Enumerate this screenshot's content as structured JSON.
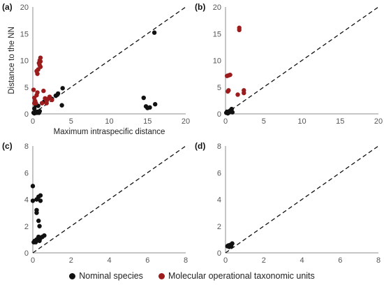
{
  "colors": {
    "nominal": "#111111",
    "motu": "#9b1c1c",
    "axis": "#8c8c8c",
    "diagonal": "#111111"
  },
  "legend": {
    "nominal_label": "Nominal species",
    "motu_label": "Molecular operational taxonomic units"
  },
  "chart_data": [
    {
      "panel": "(a)",
      "type": "scatter",
      "xlabel": "Maximum intraspecific distance",
      "ylabel": "Distance to the NN",
      "xlim": [
        0,
        20
      ],
      "ylim": [
        0,
        20
      ],
      "xticks": [
        0,
        5,
        10,
        15,
        20
      ],
      "yticks": [
        0,
        5,
        10,
        15,
        20
      ],
      "diagonal": "y = x (dashed)",
      "series": [
        {
          "name": "Nominal species",
          "color": "#111111",
          "points": [
            [
              0.1,
              0.2
            ],
            [
              0.2,
              0.1
            ],
            [
              0.3,
              0.3
            ],
            [
              0.5,
              0.2
            ],
            [
              0.6,
              0.4
            ],
            [
              0.8,
              0.2
            ],
            [
              0.9,
              0.5
            ],
            [
              0.4,
              1.6
            ],
            [
              0.2,
              1.0
            ],
            [
              0.7,
              1.5
            ],
            [
              1.5,
              2.3
            ],
            [
              2.5,
              2.8
            ],
            [
              3.0,
              3.4
            ],
            [
              3.3,
              3.8
            ],
            [
              3.9,
              4.8
            ],
            [
              3.8,
              1.6
            ],
            [
              14.5,
              3.0
            ],
            [
              14.8,
              1.4
            ],
            [
              15.0,
              1.1
            ],
            [
              15.3,
              1.2
            ],
            [
              16.0,
              1.8
            ],
            [
              15.9,
              15.2
            ]
          ]
        },
        {
          "name": "Molecular operational taxonomic units",
          "color": "#9b1c1c",
          "points": [
            [
              0.1,
              4.5
            ],
            [
              0.2,
              3.0
            ],
            [
              0.3,
              2.4
            ],
            [
              0.4,
              2.0
            ],
            [
              0.5,
              3.5
            ],
            [
              0.6,
              7.5
            ],
            [
              0.7,
              8.3
            ],
            [
              0.8,
              9.5
            ],
            [
              0.9,
              10.0
            ],
            [
              1.0,
              10.5
            ],
            [
              0.5,
              8.0
            ],
            [
              1.0,
              8.8
            ],
            [
              0.9,
              9.1
            ],
            [
              1.0,
              9.8
            ],
            [
              1.2,
              2.0
            ],
            [
              1.4,
              4.3
            ],
            [
              1.6,
              2.9
            ],
            [
              1.8,
              2.4
            ],
            [
              1.8,
              2.0
            ],
            [
              2.0,
              2.8
            ],
            [
              2.2,
              3.2
            ],
            [
              2.5,
              2.6
            ],
            [
              0.6,
              4.0
            ],
            [
              0.2,
              2.0
            ]
          ]
        }
      ]
    },
    {
      "panel": "(b)",
      "type": "scatter",
      "xlim": [
        0,
        20
      ],
      "ylim": [
        0,
        20
      ],
      "xticks": [
        0,
        5,
        10,
        15,
        20
      ],
      "yticks": [
        0,
        5,
        10,
        15,
        20
      ],
      "diagonal": "y = x (dashed)",
      "series": [
        {
          "name": "Nominal species",
          "color": "#111111",
          "points": [
            [
              0.1,
              0.2
            ],
            [
              0.2,
              0.4
            ],
            [
              0.3,
              0.1
            ],
            [
              0.5,
              0.3
            ],
            [
              0.6,
              0.6
            ],
            [
              0.8,
              0.9
            ],
            [
              0.9,
              0.3
            ]
          ]
        },
        {
          "name": "Molecular operational taxonomic units",
          "color": "#9b1c1c",
          "points": [
            [
              0.2,
              7.1
            ],
            [
              0.4,
              7.2
            ],
            [
              0.6,
              7.3
            ],
            [
              0.3,
              4.2
            ],
            [
              0.4,
              4.4
            ],
            [
              1.8,
              16.1
            ],
            [
              1.8,
              15.7
            ],
            [
              2.4,
              4.4
            ],
            [
              2.4,
              3.9
            ],
            [
              1.6,
              3.6
            ]
          ]
        }
      ]
    },
    {
      "panel": "(c)",
      "type": "scatter",
      "xlim": [
        0,
        8
      ],
      "ylim": [
        0,
        8
      ],
      "xticks": [
        0,
        2,
        4,
        6,
        8
      ],
      "yticks": [
        0,
        2,
        4,
        6,
        8
      ],
      "diagonal": "y = x (dashed)",
      "series": [
        {
          "name": "Nominal species",
          "color": "#111111",
          "points": [
            [
              0.0,
              5.0
            ],
            [
              0.0,
              3.9
            ],
            [
              0.2,
              4.0
            ],
            [
              0.3,
              4.2
            ],
            [
              0.4,
              4.3
            ],
            [
              0.4,
              3.9
            ],
            [
              0.2,
              3.2
            ],
            [
              0.2,
              3.0
            ],
            [
              0.3,
              2.4
            ],
            [
              0.35,
              2.0
            ],
            [
              0.05,
              0.8
            ],
            [
              0.1,
              0.9
            ],
            [
              0.15,
              0.8
            ],
            [
              0.2,
              1.0
            ],
            [
              0.3,
              1.2
            ],
            [
              0.4,
              1.1
            ],
            [
              0.5,
              1.2
            ],
            [
              0.6,
              1.3
            ],
            [
              0.35,
              0.9
            ]
          ]
        }
      ]
    },
    {
      "panel": "(d)",
      "type": "scatter",
      "xlim": [
        0,
        8
      ],
      "ylim": [
        0,
        8
      ],
      "xticks": [
        0,
        2,
        4,
        6,
        8
      ],
      "yticks": [
        0,
        2,
        4,
        6,
        8
      ],
      "diagonal": "y = x (dashed)",
      "series": [
        {
          "name": "Nominal species",
          "color": "#111111",
          "points": [
            [
              0.1,
              0.5
            ],
            [
              0.15,
              0.55
            ],
            [
              0.25,
              0.6
            ],
            [
              0.3,
              0.5
            ],
            [
              0.35,
              0.7
            ],
            [
              0.2,
              0.45
            ]
          ]
        }
      ]
    }
  ]
}
